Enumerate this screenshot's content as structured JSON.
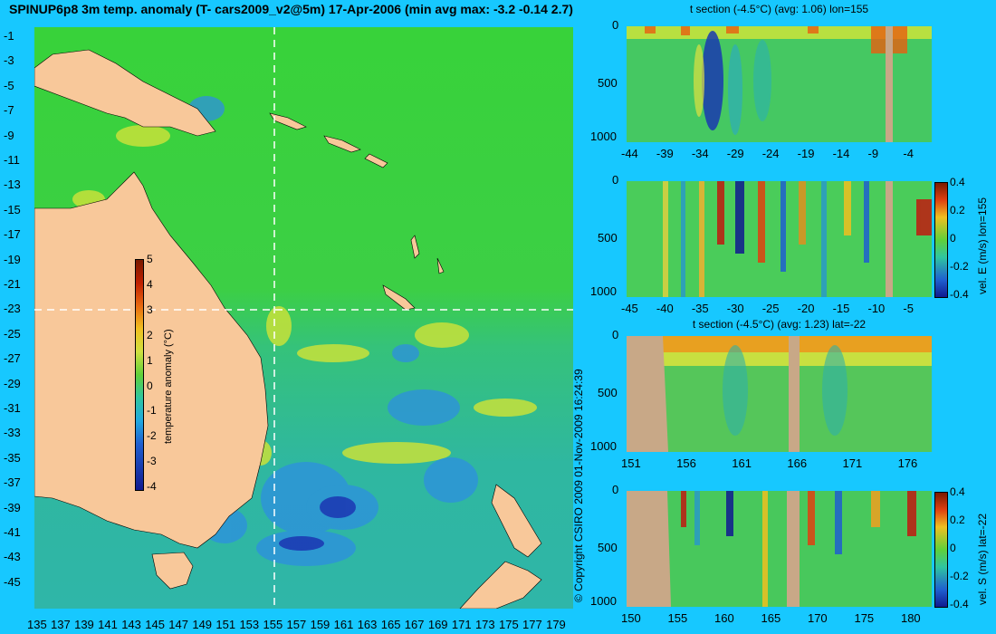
{
  "title": "SPINUP6p8 3m temp. anomaly (T- cars2009_v2@5m) 17-Apr-2006 (min avg max: -3.2 -0.14 2.7)",
  "copyright": "© Copyright CSIRO 2009   01-Nov-2009 16:24:39",
  "map": {
    "lat_labels": [
      "-1",
      "-3",
      "-5",
      "-7",
      "-9",
      "-11",
      "-13",
      "-15",
      "-17",
      "-19",
      "-21",
      "-23",
      "-25",
      "-27",
      "-29",
      "-31",
      "-33",
      "-35",
      "-37",
      "-39",
      "-41",
      "-43",
      "-45"
    ],
    "lon_labels": [
      "135",
      "137",
      "139",
      "141",
      "143",
      "145",
      "147",
      "149",
      "151",
      "153",
      "155",
      "157",
      "159",
      "161",
      "163",
      "165",
      "167",
      "169",
      "171",
      "173",
      "175",
      "177",
      "179"
    ],
    "colorbar": {
      "label": "temperature anomaly (°C)",
      "ticks": [
        "5",
        "4",
        "3",
        "2",
        "1",
        "0",
        "-1",
        "-2",
        "-3",
        "-4"
      ]
    }
  },
  "panels": [
    {
      "title": "t section (-4.5°C) (avg: 1.06) lon=155",
      "x_ticks": [
        "-44",
        "-39",
        "-34",
        "-29",
        "-24",
        "-19",
        "-14",
        "-9",
        "-4"
      ],
      "y_ticks": [
        "0",
        "500",
        "1000"
      ]
    },
    {
      "title": "",
      "x_ticks": [
        "-45",
        "-40",
        "-35",
        "-30",
        "-25",
        "-20",
        "-15",
        "-10",
        "-5"
      ],
      "y_ticks": [
        "0",
        "500",
        "1000"
      ],
      "colorbar": {
        "label": "vel. E (m/s) lon=155",
        "ticks": [
          "0.4",
          "0.2",
          "0",
          "-0.2",
          "-0.4"
        ]
      }
    },
    {
      "title": "t section (-4.5°C) (avg: 1.23) lat=-22",
      "x_ticks": [
        "151",
        "156",
        "161",
        "166",
        "171",
        "176"
      ],
      "y_ticks": [
        "0",
        "500",
        "1000"
      ]
    },
    {
      "title": "",
      "x_ticks": [
        "150",
        "155",
        "160",
        "165",
        "170",
        "175",
        "180"
      ],
      "y_ticks": [
        "0",
        "500",
        "1000"
      ],
      "colorbar": {
        "label": "vel. S (m/s) lat=-22",
        "ticks": [
          "0.4",
          "0.2",
          "0",
          "-0.2",
          "-0.4"
        ]
      }
    }
  ]
}
